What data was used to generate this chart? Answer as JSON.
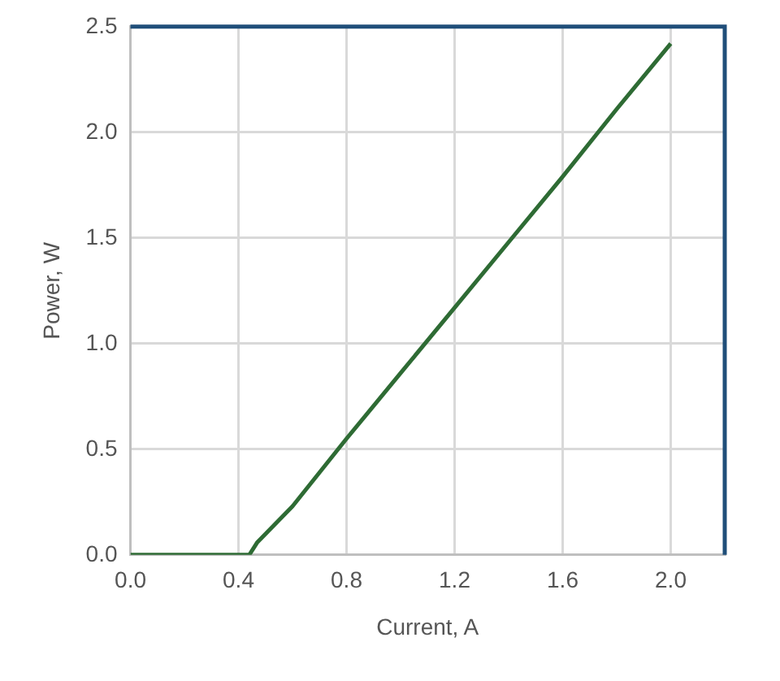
{
  "chart_data": {
    "type": "line",
    "xlabel": "Current, A",
    "ylabel": "Power, W",
    "series": [
      {
        "color": "#2e6b34",
        "x": [
          0,
          0.1,
          0.2,
          0.3,
          0.44,
          0.47,
          0.6,
          0.8,
          1.0,
          1.2,
          1.4,
          1.6,
          1.8,
          2.0
        ],
        "values": [
          0,
          0,
          0,
          0,
          0,
          0.06,
          0.23,
          0.55,
          0.86,
          1.17,
          1.48,
          1.79,
          2.11,
          2.42
        ]
      }
    ],
    "xlim": [
      0,
      2.2
    ],
    "xticks": [
      {
        "value": 0,
        "label": "0.0"
      },
      0.4,
      0.8,
      1.2,
      1.6,
      {
        "value": 2,
        "label": "2.0"
      }
    ],
    "ylim": [
      0,
      2.5
    ],
    "yticks": [
      {
        "value": 0,
        "label": "0.0"
      },
      0.5,
      {
        "value": 1,
        "label": "1.0"
      },
      1.5,
      {
        "value": 2,
        "label": "2.0"
      },
      2.5
    ],
    "grid": true,
    "legend": false,
    "marker": "none",
    "line_style": "solid"
  }
}
